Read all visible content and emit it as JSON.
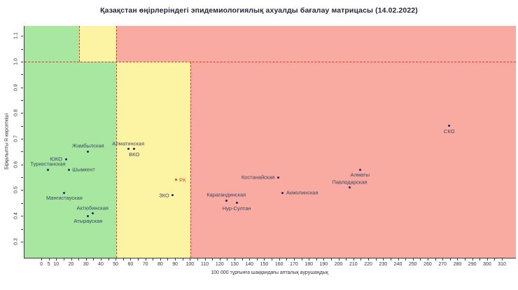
{
  "title": "Қазақстан өңірлеріндегі эпидемиологиялық ахуалды бағалау матрицасы  (14.02.2022)",
  "chart_data": {
    "type": "scatter",
    "xlabel": "100 000 тұрғынға шаққандағы апталық аурушаңдық",
    "ylabel": "Бірқалыпты R көрсеткіші",
    "xlim": [
      0,
      310
    ],
    "ylim": [
      0.3,
      1.1
    ],
    "x_minor_step": 5,
    "y_minor_step": 0.05,
    "x_tick_labels": [
      0,
      5,
      10,
      20,
      30,
      40,
      50,
      60,
      70,
      80,
      90,
      100,
      110,
      120,
      130,
      140,
      150,
      160,
      170,
      180,
      190,
      200,
      210,
      220,
      230,
      240,
      250,
      260,
      270,
      280,
      290,
      300,
      310
    ],
    "y_tick_labels": [
      "0.3",
      "0.4",
      "0.5",
      "0.6",
      "0.7",
      "0.8",
      "0.9",
      "1.0",
      "1.1"
    ],
    "grid": false,
    "legend": "none",
    "thresholds": {
      "r_split": 1.0,
      "verticals": [
        {
          "x": 25,
          "span": "upper"
        },
        {
          "x": 50,
          "span": "full"
        },
        {
          "x": 100,
          "span": "lower"
        }
      ]
    },
    "zones": {
      "split_y": 1.0,
      "lower_band": [
        {
          "from": "xmin",
          "to": 50,
          "color": "green"
        },
        {
          "from": 50,
          "to": 100,
          "color": "yellow"
        },
        {
          "from": 100,
          "to": "xmax",
          "color": "red"
        }
      ],
      "upper_band": [
        {
          "from": "xmin",
          "to": 25,
          "color": "green"
        },
        {
          "from": 25,
          "to": 50,
          "color": "yellow"
        },
        {
          "from": 50,
          "to": "xmax",
          "color": "red"
        }
      ]
    },
    "points": [
      {
        "name": "Туркестанская",
        "x": 4,
        "y": 0.58,
        "label_pos": "above"
      },
      {
        "name": "ЮКО",
        "x": 16,
        "y": 0.62,
        "label_pos": "left"
      },
      {
        "name": "Шымкент",
        "x": 18,
        "y": 0.58,
        "label_pos": "right"
      },
      {
        "name": "Мангистауская",
        "x": 15,
        "y": 0.49,
        "label_pos": "below"
      },
      {
        "name": "Жамбылская",
        "x": 31,
        "y": 0.65,
        "label_pos": "above"
      },
      {
        "name": "Актюбинская",
        "x": 34,
        "y": 0.41,
        "label_pos": "above"
      },
      {
        "name": "Атырауская",
        "x": 31,
        "y": 0.4,
        "label_pos": "below"
      },
      {
        "name": "Алматинская",
        "x": 58,
        "y": 0.66,
        "label_pos": "above"
      },
      {
        "name": "ВКО",
        "x": 62,
        "y": 0.66,
        "label_pos": "below"
      },
      {
        "name": "РК",
        "x": 90,
        "y": 0.54,
        "label_pos": "right",
        "highlight": true
      },
      {
        "name": "ЗКО",
        "x": 88,
        "y": 0.48,
        "label_pos": "left"
      },
      {
        "name": "Карагандинская",
        "x": 124,
        "y": 0.46,
        "label_pos": "above"
      },
      {
        "name": "Нур-Султан",
        "x": 131,
        "y": 0.45,
        "label_pos": "below"
      },
      {
        "name": "Костанайская",
        "x": 159,
        "y": 0.55,
        "label_pos": "left"
      },
      {
        "name": "Акмолинская",
        "x": 162,
        "y": 0.49,
        "label_pos": "right"
      },
      {
        "name": "Павлодарская",
        "x": 207,
        "y": 0.51,
        "label_pos": "above"
      },
      {
        "name": "Алматы",
        "x": 214,
        "y": 0.58,
        "label_pos": "below"
      },
      {
        "name": "СКО",
        "x": 274,
        "y": 0.75,
        "label_pos": "below"
      }
    ],
    "colors": {
      "green": "#a7e7a0",
      "yellow": "#fcf4a3",
      "red": "#f9aaa1",
      "dashed_line": "#e0392b",
      "point": "#22227a",
      "point_label": "#3a4663",
      "highlight": "#e0392b",
      "axis": "#3a3a3a"
    }
  }
}
